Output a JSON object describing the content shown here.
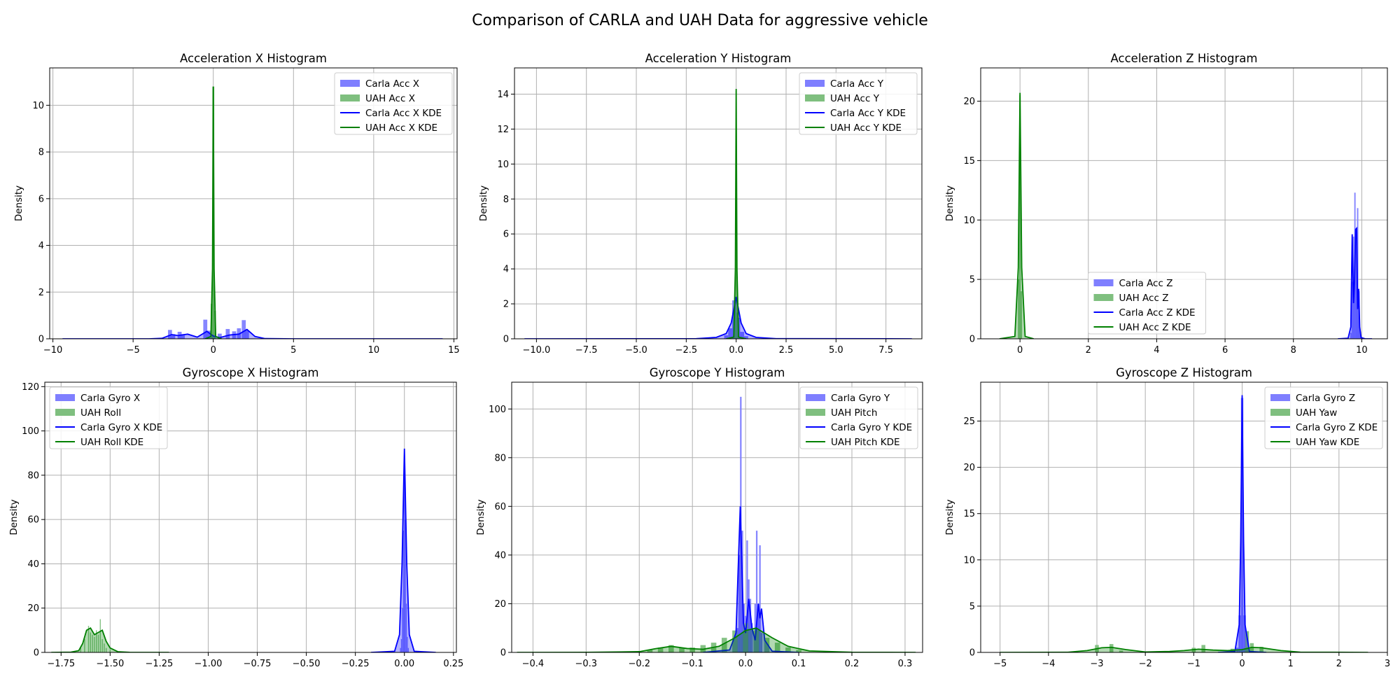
{
  "suptitle": "Comparison of CARLA and UAH Data for aggressive vehicle",
  "colors": {
    "carla": "#0000ff",
    "uah": "#008000",
    "carla_fill": "#7f7fff",
    "uah_fill": "#7fbf7f"
  },
  "chart_data": [
    {
      "type": "histogram",
      "title": "Acceleration X Histogram",
      "ylabel": "Density",
      "xlim": [
        -10.2,
        15.2
      ],
      "ylim": [
        0,
        11.6
      ],
      "xticks": [
        -10,
        -5,
        0,
        5,
        10,
        15
      ],
      "xtick_labels": [
        "−10",
        "−5",
        "0",
        "5",
        "10",
        "15"
      ],
      "yticks": [
        0,
        2,
        4,
        6,
        8,
        10
      ],
      "ytick_labels": [
        "0",
        "2",
        "4",
        "6",
        "8",
        "10"
      ],
      "legend": {
        "loc": "upper right",
        "entries": [
          "Carla Acc X",
          "UAH Acc X",
          "Carla Acc X KDE",
          "UAH Acc X KDE"
        ]
      },
      "series": [
        {
          "name": "Carla Acc X",
          "kind": "bars",
          "color": "carla",
          "width": 0.25,
          "x": [
            -2.7,
            -2.5,
            -2.1,
            -1.9,
            -0.5,
            -0.3,
            0.4,
            0.9,
            1.3,
            1.6,
            1.9,
            2.1
          ],
          "y": [
            0.38,
            0.2,
            0.3,
            0.2,
            0.82,
            0.35,
            0.22,
            0.42,
            0.32,
            0.45,
            0.8,
            0.35
          ]
        },
        {
          "name": "UAH Acc X",
          "kind": "bars",
          "color": "uah",
          "width": 0.12,
          "x": [
            -0.1,
            0.0,
            0.1
          ],
          "y": [
            1.5,
            10.8,
            1.2
          ]
        },
        {
          "name": "Carla Acc X KDE",
          "kind": "line",
          "color": "carla",
          "x": [
            -9.4,
            -4,
            -3.2,
            -2.6,
            -2.2,
            -1.6,
            -1.0,
            -0.4,
            0.0,
            0.4,
            1.0,
            1.6,
            2.1,
            2.6,
            3.2,
            5,
            14.3
          ],
          "y": [
            0,
            0,
            0.02,
            0.18,
            0.14,
            0.2,
            0.07,
            0.32,
            0.12,
            0.05,
            0.16,
            0.2,
            0.4,
            0.1,
            0.01,
            0,
            0
          ]
        },
        {
          "name": "UAH Acc X KDE",
          "kind": "line",
          "color": "uah",
          "x": [
            -0.5,
            -0.15,
            -0.05,
            0.0,
            0.05,
            0.15,
            0.5
          ],
          "y": [
            0,
            0.1,
            3.0,
            10.8,
            3.0,
            0.1,
            0
          ]
        }
      ]
    },
    {
      "type": "histogram",
      "title": "Acceleration Y Histogram",
      "ylabel": "Density",
      "xlim": [
        -11.1,
        9.3
      ],
      "ylim": [
        0,
        15.5
      ],
      "xticks": [
        -10,
        -7.5,
        -5,
        -2.5,
        0,
        2.5,
        5,
        7.5
      ],
      "xtick_labels": [
        "−10.0",
        "−7.5",
        "−5.0",
        "−2.5",
        "0.0",
        "2.5",
        "5.0",
        "7.5"
      ],
      "yticks": [
        0,
        2,
        4,
        6,
        8,
        10,
        12,
        14
      ],
      "ytick_labels": [
        "0",
        "2",
        "4",
        "6",
        "8",
        "10",
        "12",
        "14"
      ],
      "legend": {
        "loc": "upper right",
        "entries": [
          "Carla Acc Y",
          "UAH Acc Y",
          "Carla Acc Y KDE",
          "UAH Acc Y KDE"
        ]
      },
      "series": [
        {
          "name": "Carla Acc Y",
          "kind": "bars",
          "color": "carla",
          "width": 0.2,
          "x": [
            -0.5,
            -0.3,
            -0.1,
            0.1,
            0.3,
            0.5
          ],
          "y": [
            0.2,
            0.6,
            2.2,
            1.2,
            0.4,
            0.15
          ]
        },
        {
          "name": "UAH Acc Y",
          "kind": "bars",
          "color": "uah",
          "width": 0.06,
          "x": [
            -0.06,
            0.0,
            0.06
          ],
          "y": [
            1.6,
            14.2,
            1.5
          ]
        },
        {
          "name": "Carla Acc Y KDE",
          "kind": "line",
          "color": "carla",
          "x": [
            -10.6,
            -2,
            -1,
            -0.5,
            -0.25,
            0.0,
            0.25,
            0.5,
            1,
            2,
            8.8
          ],
          "y": [
            0,
            0.01,
            0.08,
            0.3,
            0.9,
            2.4,
            0.9,
            0.3,
            0.08,
            0.01,
            0
          ]
        },
        {
          "name": "UAH Acc Y KDE",
          "kind": "line",
          "color": "uah",
          "x": [
            -0.5,
            -0.12,
            -0.04,
            0.0,
            0.04,
            0.12,
            0.5
          ],
          "y": [
            0,
            0.1,
            4.0,
            14.3,
            4.0,
            0.1,
            0
          ]
        }
      ]
    },
    {
      "type": "histogram",
      "title": "Acceleration Z Histogram",
      "ylabel": "Density",
      "xlim": [
        -1.15,
        10.75
      ],
      "ylim": [
        0,
        22.8
      ],
      "xticks": [
        0,
        2,
        4,
        6,
        8,
        10
      ],
      "xtick_labels": [
        "0",
        "2",
        "4",
        "6",
        "8",
        "10"
      ],
      "yticks": [
        0,
        5,
        10,
        15,
        20
      ],
      "ytick_labels": [
        "0",
        "5",
        "10",
        "15",
        "20"
      ],
      "legend": {
        "loc": "lower center",
        "entries": [
          "Carla Acc Z",
          "UAH Acc Z",
          "Carla Acc Z KDE",
          "UAH Acc Z KDE"
        ]
      },
      "series": [
        {
          "name": "Carla Acc Z",
          "kind": "bars",
          "color": "carla",
          "width": 0.04,
          "x": [
            9.68,
            9.72,
            9.76,
            9.8,
            9.84,
            9.88,
            9.92,
            9.96
          ],
          "y": [
            0.5,
            4.8,
            8.6,
            12.3,
            9.3,
            11.0,
            4.0,
            0.6
          ]
        },
        {
          "name": "UAH Acc Z",
          "kind": "bars",
          "color": "uah",
          "width": 0.04,
          "x": [
            -0.04,
            0.0,
            0.04
          ],
          "y": [
            5.0,
            20.5,
            4.0
          ]
        },
        {
          "name": "Carla Acc Z KDE",
          "kind": "line",
          "color": "carla",
          "x": [
            9.3,
            9.6,
            9.68,
            9.72,
            9.76,
            9.79,
            9.82,
            9.85,
            9.88,
            9.91,
            9.94,
            9.98,
            10.1,
            10.3
          ],
          "y": [
            0,
            0.05,
            1.0,
            8.8,
            3.0,
            5.0,
            9.2,
            9.3,
            2.5,
            4.2,
            1.0,
            0.1,
            0,
            0
          ]
        },
        {
          "name": "UAH Acc Z KDE",
          "kind": "line",
          "color": "uah",
          "x": [
            -0.6,
            -0.15,
            -0.05,
            0.0,
            0.05,
            0.15,
            0.4
          ],
          "y": [
            0,
            0.2,
            6.0,
            20.7,
            6.0,
            0.2,
            0
          ]
        }
      ]
    },
    {
      "type": "histogram",
      "title": "Gyroscope X Histogram",
      "ylabel": "Density",
      "xlim": [
        -1.833,
        0.265
      ],
      "ylim": [
        0,
        122
      ],
      "xticks": [
        -1.75,
        -1.5,
        -1.25,
        -1.0,
        -0.75,
        -0.5,
        -0.25,
        0.0,
        0.25
      ],
      "xtick_labels": [
        "−1.75",
        "−1.50",
        "−1.25",
        "−1.00",
        "−0.75",
        "−0.50",
        "−0.25",
        "0.00",
        "0.25"
      ],
      "yticks": [
        0,
        20,
        40,
        60,
        80,
        100,
        120
      ],
      "ytick_labels": [
        "0",
        "20",
        "40",
        "60",
        "80",
        "100",
        "120"
      ],
      "legend": {
        "loc": "upper left",
        "entries": [
          "Carla Gyro X",
          "UAH Roll",
          "Carla Gyro X KDE",
          "UAH Roll KDE"
        ]
      },
      "series": [
        {
          "name": "Carla Gyro X",
          "kind": "bars",
          "color": "carla",
          "width": 0.005,
          "x": [
            -0.02,
            -0.015,
            -0.01,
            -0.005,
            0.0,
            0.005,
            0.01,
            0.015,
            0.02
          ],
          "y": [
            2,
            6,
            20,
            55,
            90,
            60,
            22,
            7,
            2
          ]
        },
        {
          "name": "UAH Roll",
          "kind": "bars",
          "color": "uah",
          "width": 0.005,
          "x": [
            -1.65,
            -1.63,
            -1.61,
            -1.6,
            -1.59,
            -1.58,
            -1.57,
            -1.56,
            -1.55,
            -1.54,
            -1.53,
            -1.52,
            -1.5
          ],
          "y": [
            2,
            6,
            12,
            9,
            8,
            7,
            10,
            8,
            15,
            6,
            4,
            2,
            1
          ]
        },
        {
          "name": "Carla Gyro X KDE",
          "kind": "line",
          "color": "carla",
          "x": [
            -0.17,
            -0.05,
            -0.025,
            -0.012,
            0.0,
            0.012,
            0.025,
            0.05,
            0.16
          ],
          "y": [
            0,
            0.5,
            8,
            40,
            92,
            40,
            8,
            0.5,
            0
          ]
        },
        {
          "name": "UAH Roll KDE",
          "kind": "line",
          "color": "uah",
          "x": [
            -1.8,
            -1.7,
            -1.66,
            -1.64,
            -1.62,
            -1.6,
            -1.58,
            -1.56,
            -1.54,
            -1.52,
            -1.5,
            -1.46,
            -1.4,
            -1.2
          ],
          "y": [
            0,
            0.1,
            0.8,
            4,
            10,
            11,
            8,
            9,
            10,
            5,
            2,
            0.3,
            0.05,
            0
          ]
        }
      ]
    },
    {
      "type": "histogram",
      "title": "Gyroscope Y Histogram",
      "ylabel": "Density",
      "xlim": [
        -0.44,
        0.333
      ],
      "ylim": [
        0,
        111
      ],
      "xticks": [
        -0.4,
        -0.3,
        -0.2,
        -0.1,
        0.0,
        0.1,
        0.2,
        0.3
      ],
      "xtick_labels": [
        "−0.4",
        "−0.3",
        "−0.2",
        "−0.1",
        "0.0",
        "0.1",
        "0.2",
        "0.3"
      ],
      "yticks": [
        0,
        20,
        40,
        60,
        80,
        100
      ],
      "ytick_labels": [
        "0",
        "20",
        "40",
        "60",
        "80",
        "100"
      ],
      "legend": {
        "loc": "upper right",
        "entries": [
          "Carla Gyro Y",
          "UAH Pitch",
          "Carla Gyro Y KDE",
          "UAH Pitch KDE"
        ]
      },
      "series": [
        {
          "name": "Carla Gyro Y",
          "kind": "bars",
          "color": "carla",
          "width": 0.003,
          "x": [
            -0.015,
            -0.012,
            -0.009,
            -0.006,
            -0.003,
            0.0,
            0.003,
            0.006,
            0.009,
            0.012,
            0.018,
            0.021,
            0.024,
            0.027,
            0.03
          ],
          "y": [
            10,
            40,
            105,
            50,
            20,
            15,
            46,
            30,
            22,
            12,
            20,
            50,
            20,
            44,
            8
          ]
        },
        {
          "name": "UAH Pitch",
          "kind": "bars",
          "color": "uah",
          "width": 0.01,
          "x": [
            -0.18,
            -0.16,
            -0.14,
            -0.12,
            -0.1,
            -0.08,
            -0.06,
            -0.04,
            -0.02,
            0.0,
            0.02,
            0.04,
            0.06,
            0.08,
            0.1
          ],
          "y": [
            1,
            2,
            3,
            2,
            2,
            3,
            4,
            6,
            9,
            12,
            9,
            6,
            4,
            2,
            1
          ]
        },
        {
          "name": "Carla Gyro Y KDE",
          "kind": "line",
          "color": "carla",
          "x": [
            -0.08,
            -0.03,
            -0.018,
            -0.01,
            -0.004,
            0.0,
            0.006,
            0.012,
            0.018,
            0.024,
            0.027,
            0.03,
            0.036,
            0.05,
            0.1
          ],
          "y": [
            0,
            1,
            8,
            60,
            12,
            8,
            22,
            10,
            5,
            20,
            14,
            18,
            5,
            0.5,
            0
          ]
        },
        {
          "name": "UAH Pitch KDE",
          "kind": "line",
          "color": "uah",
          "x": [
            -0.43,
            -0.3,
            -0.2,
            -0.17,
            -0.14,
            -0.11,
            -0.08,
            -0.05,
            -0.02,
            0.0,
            0.02,
            0.05,
            0.08,
            0.12,
            0.2,
            0.32
          ],
          "y": [
            0,
            0.02,
            0.3,
            1.5,
            2.5,
            1.6,
            1.3,
            2.5,
            6,
            9,
            10,
            6,
            2.5,
            0.6,
            0.05,
            0
          ]
        }
      ]
    },
    {
      "type": "histogram",
      "title": "Gyroscope Z Histogram",
      "ylabel": "Density",
      "xlim": [
        -5.4,
        3.0
      ],
      "ylim": [
        0,
        29.2
      ],
      "xticks": [
        -5,
        -4,
        -3,
        -2,
        -1,
        0,
        1,
        2,
        3
      ],
      "xtick_labels": [
        "−5",
        "−4",
        "−3",
        "−2",
        "−1",
        "0",
        "1",
        "2",
        "3"
      ],
      "yticks": [
        0,
        5,
        10,
        15,
        20,
        25
      ],
      "ytick_labels": [
        "0",
        "5",
        "10",
        "15",
        "20",
        "25"
      ],
      "legend": {
        "loc": "upper right",
        "entries": [
          "Carla Gyro Z",
          "UAH Yaw",
          "Carla Gyro Z KDE",
          "UAH Yaw KDE"
        ]
      },
      "series": [
        {
          "name": "Carla Gyro Z",
          "kind": "bars",
          "color": "carla",
          "width": 0.05,
          "x": [
            -0.1,
            -0.05,
            0.0,
            0.05,
            0.1
          ],
          "y": [
            0.5,
            4,
            27.5,
            4,
            0.5
          ]
        },
        {
          "name": "UAH Yaw",
          "kind": "bars",
          "color": "uah",
          "width": 0.08,
          "x": [
            -3.0,
            -2.7,
            -2.5,
            -1.0,
            -0.8,
            -0.2,
            0.1,
            0.2,
            0.4
          ],
          "y": [
            0.8,
            0.9,
            0.2,
            0.5,
            0.8,
            0.4,
            2.3,
            1.0,
            0.6
          ]
        },
        {
          "name": "Carla Gyro Z KDE",
          "kind": "line",
          "color": "carla",
          "x": [
            -0.5,
            -0.15,
            -0.06,
            -0.03,
            0.0,
            0.03,
            0.06,
            0.15,
            0.5
          ],
          "y": [
            0,
            0.1,
            3,
            12,
            27.8,
            12,
            3,
            0.1,
            0
          ]
        },
        {
          "name": "UAH Yaw KDE",
          "kind": "line",
          "color": "uah",
          "x": [
            -5.0,
            -3.6,
            -3.2,
            -2.9,
            -2.7,
            -2.4,
            -2.0,
            -1.5,
            -1.2,
            -0.9,
            -0.6,
            -0.3,
            0.0,
            0.2,
            0.4,
            0.8,
            1.2,
            2.6
          ],
          "y": [
            0,
            0.02,
            0.2,
            0.5,
            0.55,
            0.3,
            0.05,
            0.1,
            0.2,
            0.35,
            0.25,
            0.2,
            0.3,
            0.55,
            0.5,
            0.2,
            0.03,
            0
          ]
        }
      ]
    }
  ]
}
